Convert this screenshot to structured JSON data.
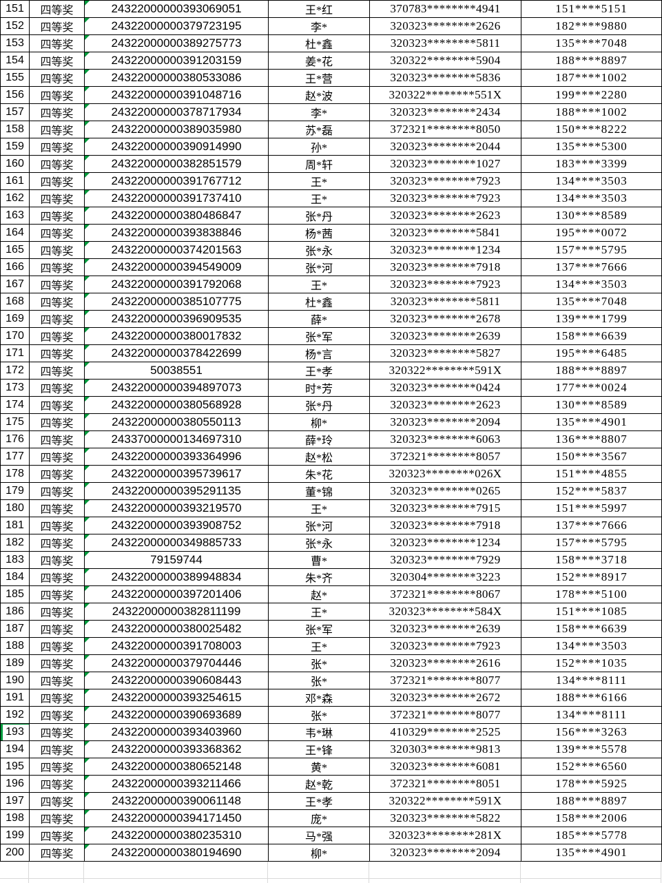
{
  "app": {
    "type": "spreadsheet-prize-list",
    "prize_label": "四等奖"
  },
  "colors": {
    "table_border": "#000000",
    "grid_line": "#d9d9d9",
    "flag_green": "#009a3c",
    "text": "#000000",
    "background": "#ffffff"
  },
  "icons": {
    "text_number_flag": "green-corner-triangle-icon",
    "row_marker": "green-left-bar-icon"
  },
  "table": {
    "columns": [
      "row-number",
      "prize-level",
      "ticket-number",
      "winner-name",
      "id-number",
      "phone-number"
    ],
    "rows": [
      {
        "no": "151",
        "prize": "四等奖",
        "ticket": "24322000000393069051",
        "name": "王*红",
        "id": "370783********4941",
        "phone": "151****5151",
        "flag": true
      },
      {
        "no": "152",
        "prize": "四等奖",
        "ticket": "24322000000379723195",
        "name": "李*",
        "id": "320323********2626",
        "phone": "182****9880",
        "flag": true
      },
      {
        "no": "153",
        "prize": "四等奖",
        "ticket": "24322000000389275773",
        "name": "杜*鑫",
        "id": "320323********5811",
        "phone": "135****7048",
        "flag": true
      },
      {
        "no": "154",
        "prize": "四等奖",
        "ticket": "24322000000391203159",
        "name": "姜*花",
        "id": "320322********5904",
        "phone": "188****8897",
        "flag": true
      },
      {
        "no": "155",
        "prize": "四等奖",
        "ticket": "24322000000380533086",
        "name": "王*营",
        "id": "320323********5836",
        "phone": "187****1002",
        "flag": true
      },
      {
        "no": "156",
        "prize": "四等奖",
        "ticket": "24322000000391048716",
        "name": "赵*波",
        "id": "320322********551X",
        "phone": "199****2280",
        "flag": true
      },
      {
        "no": "157",
        "prize": "四等奖",
        "ticket": "24322000000378717934",
        "name": "李*",
        "id": "320323********2434",
        "phone": "188****1002",
        "flag": true
      },
      {
        "no": "158",
        "prize": "四等奖",
        "ticket": "24322000000389035980",
        "name": "苏*磊",
        "id": "372321********8050",
        "phone": "150****8222",
        "flag": true
      },
      {
        "no": "159",
        "prize": "四等奖",
        "ticket": "24322000000390914990",
        "name": "孙*",
        "id": "320323********2044",
        "phone": "135****5300",
        "flag": true
      },
      {
        "no": "160",
        "prize": "四等奖",
        "ticket": "24322000000382851579",
        "name": "周*轩",
        "id": "320323********1027",
        "phone": "183****3399",
        "flag": true
      },
      {
        "no": "161",
        "prize": "四等奖",
        "ticket": "24322000000391767712",
        "name": "王*",
        "id": "320323********7923",
        "phone": "134****3503",
        "flag": true
      },
      {
        "no": "162",
        "prize": "四等奖",
        "ticket": "24322000000391737410",
        "name": "王*",
        "id": "320323********7923",
        "phone": "134****3503",
        "flag": true
      },
      {
        "no": "163",
        "prize": "四等奖",
        "ticket": "24322000000380486847",
        "name": "张*丹",
        "id": "320323********2623",
        "phone": "130****8589",
        "flag": true
      },
      {
        "no": "164",
        "prize": "四等奖",
        "ticket": "24322000000393838846",
        "name": "杨*茜",
        "id": "320323********5841",
        "phone": "195****0072",
        "flag": true
      },
      {
        "no": "165",
        "prize": "四等奖",
        "ticket": "24322000000374201563",
        "name": "张*永",
        "id": "320323********1234",
        "phone": "157****5795",
        "flag": true
      },
      {
        "no": "166",
        "prize": "四等奖",
        "ticket": "24322000000394549009",
        "name": "张*河",
        "id": "320323********7918",
        "phone": "137****7666",
        "flag": true
      },
      {
        "no": "167",
        "prize": "四等奖",
        "ticket": "24322000000391792068",
        "name": "王*",
        "id": "320323********7923",
        "phone": "134****3503",
        "flag": true
      },
      {
        "no": "168",
        "prize": "四等奖",
        "ticket": "24322000000385107775",
        "name": "杜*鑫",
        "id": "320323********5811",
        "phone": "135****7048",
        "flag": true
      },
      {
        "no": "169",
        "prize": "四等奖",
        "ticket": "24322000000396909535",
        "name": "薛*",
        "id": "320323********2678",
        "phone": "139****1799",
        "flag": true
      },
      {
        "no": "170",
        "prize": "四等奖",
        "ticket": "24322000000380017832",
        "name": "张*军",
        "id": "320323********2639",
        "phone": "158****6639",
        "flag": true
      },
      {
        "no": "171",
        "prize": "四等奖",
        "ticket": "24322000000378422699",
        "name": "杨*言",
        "id": "320323********5827",
        "phone": "195****6485",
        "flag": true
      },
      {
        "no": "172",
        "prize": "四等奖",
        "ticket": "50038551",
        "name": "王*孝",
        "id": "320322********591X",
        "phone": "188****8897",
        "flag": true
      },
      {
        "no": "173",
        "prize": "四等奖",
        "ticket": "24322000000394897073",
        "name": "时*芳",
        "id": "320323********0424",
        "phone": "177****0024",
        "flag": true
      },
      {
        "no": "174",
        "prize": "四等奖",
        "ticket": "24322000000380568928",
        "name": "张*丹",
        "id": "320323********2623",
        "phone": "130****8589",
        "flag": true
      },
      {
        "no": "175",
        "prize": "四等奖",
        "ticket": "24322000000380550113",
        "name": "柳*",
        "id": "320323********2094",
        "phone": "135****4901",
        "flag": true
      },
      {
        "no": "176",
        "prize": "四等奖",
        "ticket": "24337000000134697310",
        "name": "薛*玲",
        "id": "320323********6063",
        "phone": "136****8807",
        "flag": true
      },
      {
        "no": "177",
        "prize": "四等奖",
        "ticket": "24322000000393364996",
        "name": "赵*松",
        "id": "372321********8057",
        "phone": "150****3567",
        "flag": true
      },
      {
        "no": "178",
        "prize": "四等奖",
        "ticket": "24322000000395739617",
        "name": "朱*花",
        "id": "320323********026X",
        "phone": "151****4855",
        "flag": true
      },
      {
        "no": "179",
        "prize": "四等奖",
        "ticket": "24322000000395291135",
        "name": "董*锦",
        "id": "320323********0265",
        "phone": "152****5837",
        "flag": true
      },
      {
        "no": "180",
        "prize": "四等奖",
        "ticket": "24322000000393219570",
        "name": "王*",
        "id": "320323********7915",
        "phone": "151****5997",
        "flag": true
      },
      {
        "no": "181",
        "prize": "四等奖",
        "ticket": "24322000000393908752",
        "name": "张*河",
        "id": "320323********7918",
        "phone": "137****7666",
        "flag": true
      },
      {
        "no": "182",
        "prize": "四等奖",
        "ticket": "24322000000349885733",
        "name": "张*永",
        "id": "320323********1234",
        "phone": "157****5795",
        "flag": true
      },
      {
        "no": "183",
        "prize": "四等奖",
        "ticket": "79159744",
        "name": "曹*",
        "id": "320323********7929",
        "phone": "158****3718",
        "flag": true
      },
      {
        "no": "184",
        "prize": "四等奖",
        "ticket": "24322000000389948834",
        "name": "朱*齐",
        "id": "320304********3223",
        "phone": "152****8917",
        "flag": true
      },
      {
        "no": "185",
        "prize": "四等奖",
        "ticket": "24322000000397201406",
        "name": "赵*",
        "id": "372321********8067",
        "phone": "178****5100",
        "flag": true
      },
      {
        "no": "186",
        "prize": "四等奖",
        "ticket": "24322000000382811199",
        "name": "王*",
        "id": "320323********584X",
        "phone": "151****1085",
        "flag": true
      },
      {
        "no": "187",
        "prize": "四等奖",
        "ticket": "24322000000380025482",
        "name": "张*军",
        "id": "320323********2639",
        "phone": "158****6639",
        "flag": true
      },
      {
        "no": "188",
        "prize": "四等奖",
        "ticket": "24322000000391708003",
        "name": "王*",
        "id": "320323********7923",
        "phone": "134****3503",
        "flag": true
      },
      {
        "no": "189",
        "prize": "四等奖",
        "ticket": "24322000000379704446",
        "name": "张*",
        "id": "320323********2616",
        "phone": "152****1035",
        "flag": true
      },
      {
        "no": "190",
        "prize": "四等奖",
        "ticket": "24322000000390608443",
        "name": "张*",
        "id": "372321********8077",
        "phone": "134****8111",
        "flag": true
      },
      {
        "no": "191",
        "prize": "四等奖",
        "ticket": "24322000000393254615",
        "name": "邓*森",
        "id": "320323********2672",
        "phone": "188****6166",
        "flag": true
      },
      {
        "no": "192",
        "prize": "四等奖",
        "ticket": "24322000000390693689",
        "name": "张*",
        "id": "372321********8077",
        "phone": "134****8111",
        "flag": true
      },
      {
        "no": "193",
        "prize": "四等奖",
        "ticket": "24322000000393403960",
        "name": "韦*琳",
        "id": "410329********2525",
        "phone": "156****3263",
        "flag": true,
        "marked": true
      },
      {
        "no": "194",
        "prize": "四等奖",
        "ticket": "24322000000393368362",
        "name": "王*锋",
        "id": "320303********9813",
        "phone": "139****5578",
        "flag": true
      },
      {
        "no": "195",
        "prize": "四等奖",
        "ticket": "24322000000380652148",
        "name": "黄*",
        "id": "320323********6081",
        "phone": "152****6560",
        "flag": true
      },
      {
        "no": "196",
        "prize": "四等奖",
        "ticket": "24322000000393211466",
        "name": "赵*乾",
        "id": "372321********8051",
        "phone": "178****5925",
        "flag": true
      },
      {
        "no": "197",
        "prize": "四等奖",
        "ticket": "24322000000390061148",
        "name": "王*孝",
        "id": "320322********591X",
        "phone": "188****8897",
        "flag": true
      },
      {
        "no": "198",
        "prize": "四等奖",
        "ticket": "24322000000394171450",
        "name": "庞*",
        "id": "320323********5822",
        "phone": "158****2006",
        "flag": true
      },
      {
        "no": "199",
        "prize": "四等奖",
        "ticket": "24322000000380235310",
        "name": "马*强",
        "id": "320323********281X",
        "phone": "185****5778",
        "flag": true
      },
      {
        "no": "200",
        "prize": "四等奖",
        "ticket": "24322000000380194690",
        "name": "柳*",
        "id": "320323********2094",
        "phone": "135****4901",
        "flag": true
      }
    ]
  }
}
